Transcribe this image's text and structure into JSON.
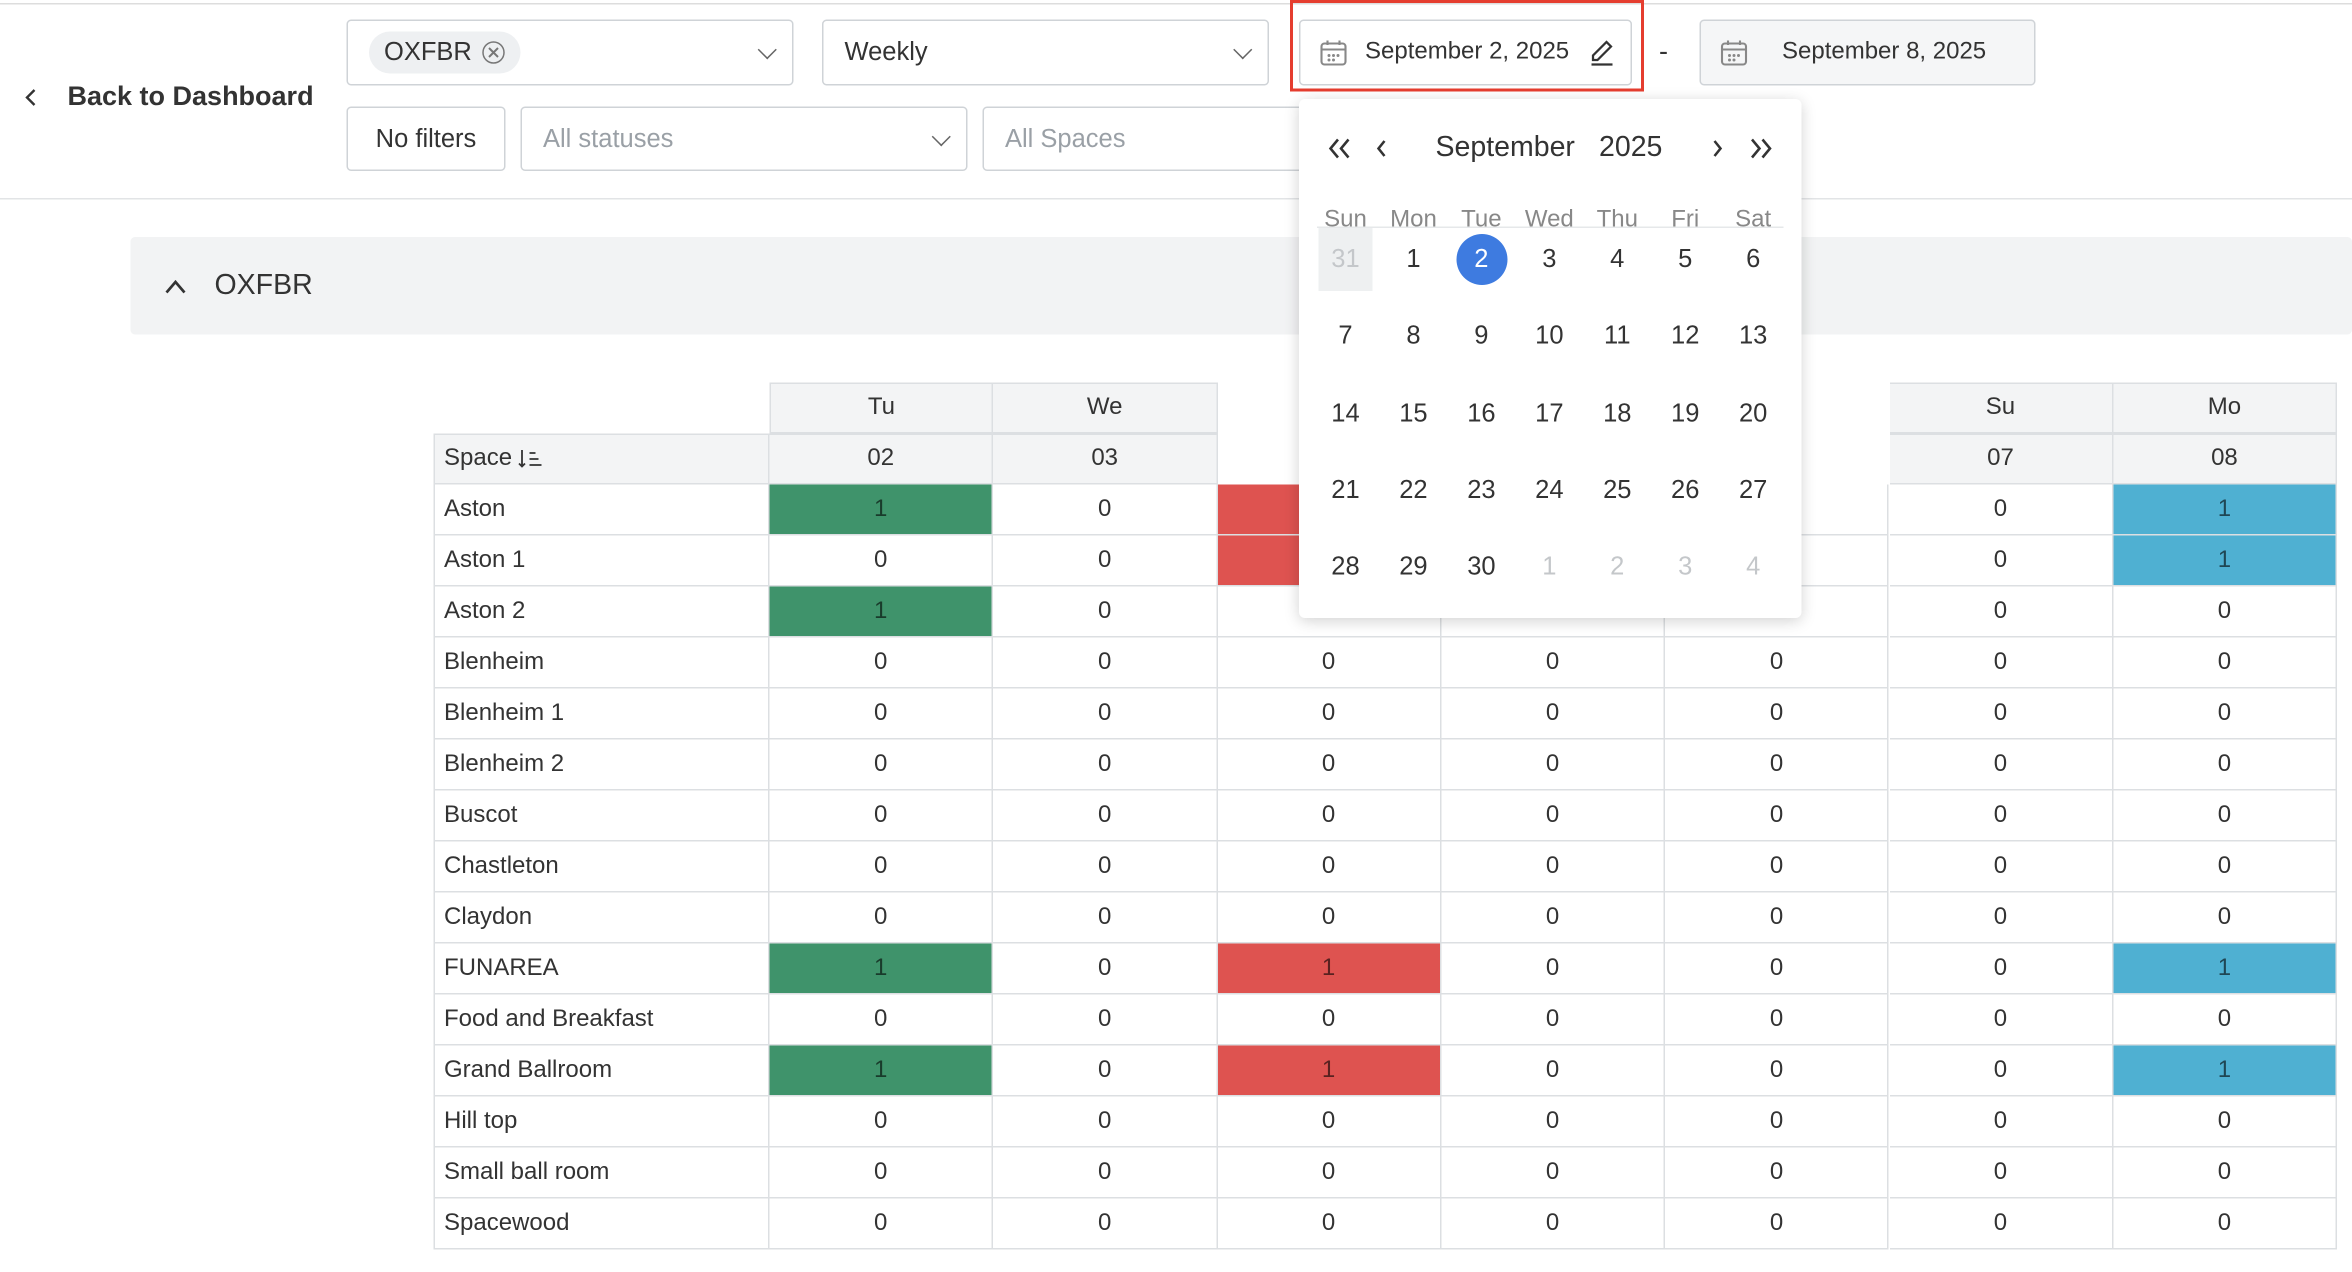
{
  "nav": {
    "back": "Back to Dashboard"
  },
  "filters": {
    "venue_chip": "OXFBR",
    "period": "Weekly",
    "start_date": "September 2, 2025",
    "date_separator": "-",
    "end_date": "September 8, 2025",
    "no_filters": "No filters",
    "statuses": "All statuses",
    "spaces": "All Spaces"
  },
  "calendar": {
    "month": "September",
    "year": "2025",
    "weekdays": [
      "Sun",
      "Mon",
      "Tue",
      "Wed",
      "Thu",
      "Fri",
      "Sat"
    ],
    "weeks": [
      [
        31,
        1,
        2,
        3,
        4,
        5,
        6
      ],
      [
        7,
        8,
        9,
        10,
        11,
        12,
        13
      ],
      [
        14,
        15,
        16,
        17,
        18,
        19,
        20
      ],
      [
        21,
        22,
        23,
        24,
        25,
        26,
        27
      ],
      [
        28,
        29,
        30,
        1,
        2,
        3,
        4
      ]
    ],
    "selected": 2
  },
  "group": {
    "title": "OXFBR"
  },
  "table": {
    "space_header": "Space",
    "days": [
      "Tu",
      "We",
      null,
      null,
      null,
      "Su",
      "Mo"
    ],
    "dates": [
      "02",
      "03",
      null,
      null,
      null,
      "07",
      "08"
    ],
    "rows": [
      {
        "space": "Aston",
        "values": [
          1,
          0,
          null,
          null,
          null,
          0,
          1
        ],
        "colors": [
          "#3f936b",
          null,
          "#de5350",
          null,
          null,
          null,
          "#4fb0d2"
        ]
      },
      {
        "space": "Aston 1",
        "values": [
          0,
          0,
          null,
          null,
          null,
          0,
          1
        ],
        "colors": [
          null,
          null,
          "#de5350",
          null,
          null,
          null,
          "#4fb0d2"
        ]
      },
      {
        "space": "Aston 2",
        "values": [
          1,
          0,
          null,
          null,
          null,
          0,
          0
        ],
        "colors": [
          "#3f936b",
          null,
          null,
          null,
          null,
          null,
          null
        ]
      },
      {
        "space": "Blenheim",
        "values": [
          0,
          0,
          0,
          0,
          0,
          0,
          0
        ],
        "colors": [
          null,
          null,
          null,
          null,
          null,
          null,
          null
        ]
      },
      {
        "space": "Blenheim 1",
        "values": [
          0,
          0,
          0,
          0,
          0,
          0,
          0
        ],
        "colors": [
          null,
          null,
          null,
          null,
          null,
          null,
          null
        ]
      },
      {
        "space": "Blenheim 2",
        "values": [
          0,
          0,
          0,
          0,
          0,
          0,
          0
        ],
        "colors": [
          null,
          null,
          null,
          null,
          null,
          null,
          null
        ]
      },
      {
        "space": "Buscot",
        "values": [
          0,
          0,
          0,
          0,
          0,
          0,
          0
        ],
        "colors": [
          null,
          null,
          null,
          null,
          null,
          null,
          null
        ]
      },
      {
        "space": "Chastleton",
        "values": [
          0,
          0,
          0,
          0,
          0,
          0,
          0
        ],
        "colors": [
          null,
          null,
          null,
          null,
          null,
          null,
          null
        ]
      },
      {
        "space": "Claydon",
        "values": [
          0,
          0,
          0,
          0,
          0,
          0,
          0
        ],
        "colors": [
          null,
          null,
          null,
          null,
          null,
          null,
          null
        ]
      },
      {
        "space": "FUNAREA",
        "values": [
          1,
          0,
          1,
          0,
          0,
          0,
          1
        ],
        "colors": [
          "#3f936b",
          null,
          "#de5350",
          null,
          null,
          null,
          "#4fb0d2"
        ]
      },
      {
        "space": "Food and Breakfast",
        "values": [
          0,
          0,
          0,
          0,
          0,
          0,
          0
        ],
        "colors": [
          null,
          null,
          null,
          null,
          null,
          null,
          null
        ]
      },
      {
        "space": "Grand Ballroom",
        "values": [
          1,
          0,
          1,
          0,
          0,
          0,
          1
        ],
        "colors": [
          "#3f936b",
          null,
          "#de5350",
          null,
          null,
          null,
          "#4fb0d2"
        ]
      },
      {
        "space": "Hill top",
        "values": [
          0,
          0,
          0,
          0,
          0,
          0,
          0
        ],
        "colors": [
          null,
          null,
          null,
          null,
          null,
          null,
          null
        ]
      },
      {
        "space": "Small ball room",
        "values": [
          0,
          0,
          0,
          0,
          0,
          0,
          0
        ],
        "colors": [
          null,
          null,
          null,
          null,
          null,
          null,
          null
        ]
      },
      {
        "space": "Spacewood",
        "values": [
          0,
          0,
          0,
          0,
          0,
          0,
          0
        ],
        "colors": [
          null,
          null,
          null,
          null,
          null,
          null,
          null
        ]
      }
    ]
  }
}
